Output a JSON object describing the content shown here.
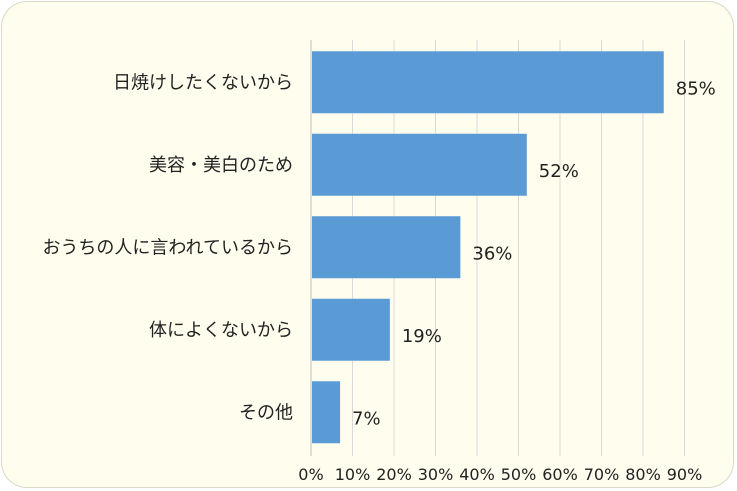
{
  "chart_data": {
    "type": "bar",
    "orientation": "horizontal",
    "categories": [
      "日焼けしたくないから",
      "美容・美白のため",
      "おうちの人に言われているから",
      "体によくないから",
      "その他"
    ],
    "values": [
      85,
      52,
      36,
      19,
      7
    ],
    "value_labels": [
      "85%",
      "52%",
      "36%",
      "19%",
      "7%"
    ],
    "x_ticks": [
      "0%",
      "10%",
      "20%",
      "30%",
      "40%",
      "50%",
      "60%",
      "70%",
      "80%",
      "90%"
    ],
    "xlim": [
      0,
      90
    ],
    "grid": "vertical",
    "bar_color": "#5b9bd5",
    "background_color": "#fefdee"
  }
}
